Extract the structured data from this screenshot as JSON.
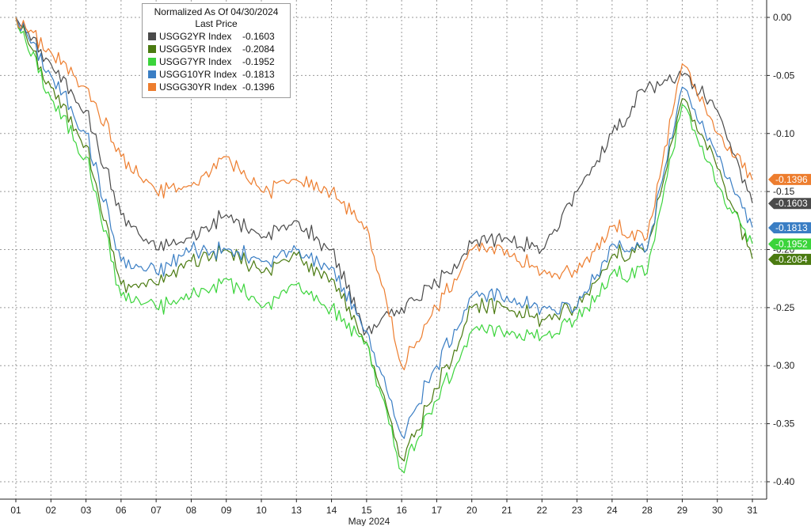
{
  "chart_data": {
    "type": "line",
    "title": "Normalized As Of 04/30/2024",
    "subtitle": "Last Price",
    "xlabel": "May 2024",
    "ylabel": "",
    "x_ticks": [
      "01",
      "02",
      "03",
      "06",
      "07",
      "08",
      "09",
      "10",
      "13",
      "14",
      "15",
      "16",
      "17",
      "20",
      "21",
      "22",
      "23",
      "24",
      "28",
      "29",
      "30",
      "31"
    ],
    "y_ticks": [
      "0.00",
      "-0.05",
      "-0.10",
      "-0.15",
      "-0.20",
      "-0.25",
      "-0.30",
      "-0.35",
      "-0.40"
    ],
    "ylim": [
      -0.415,
      0.015
    ],
    "series": [
      {
        "name": "USGG2YR Index",
        "last": "-0.1603",
        "color": "#4a4a4a",
        "values": [
          0.0,
          -0.04,
          -0.08,
          -0.17,
          -0.2,
          -0.19,
          -0.17,
          -0.19,
          -0.175,
          -0.2,
          -0.27,
          -0.25,
          -0.23,
          -0.195,
          -0.19,
          -0.2,
          -0.15,
          -0.1,
          -0.06,
          -0.05,
          -0.08,
          -0.16
        ]
      },
      {
        "name": "USGG5YR Index",
        "last": "-0.2084",
        "color": "#4a7a10",
        "values": [
          0.0,
          -0.06,
          -0.11,
          -0.23,
          -0.23,
          -0.21,
          -0.2,
          -0.22,
          -0.205,
          -0.225,
          -0.28,
          -0.38,
          -0.32,
          -0.25,
          -0.25,
          -0.26,
          -0.25,
          -0.205,
          -0.2,
          -0.07,
          -0.13,
          -0.208
        ]
      },
      {
        "name": "USGG7YR Index",
        "last": "-0.1952",
        "color": "#3bd43b",
        "values": [
          0.0,
          -0.07,
          -0.12,
          -0.24,
          -0.25,
          -0.24,
          -0.225,
          -0.25,
          -0.23,
          -0.25,
          -0.28,
          -0.39,
          -0.33,
          -0.27,
          -0.27,
          -0.275,
          -0.26,
          -0.22,
          -0.22,
          -0.075,
          -0.145,
          -0.195
        ]
      },
      {
        "name": "USGG10YR Index",
        "last": "-0.1813",
        "color": "#3a7ec4",
        "values": [
          0.0,
          -0.05,
          -0.1,
          -0.21,
          -0.22,
          -0.2,
          -0.2,
          -0.21,
          -0.2,
          -0.215,
          -0.27,
          -0.36,
          -0.3,
          -0.24,
          -0.24,
          -0.25,
          -0.25,
          -0.195,
          -0.2,
          -0.06,
          -0.12,
          -0.181
        ]
      },
      {
        "name": "USGG30YR Index",
        "last": "-0.1396",
        "color": "#ed7d2e",
        "values": [
          0.0,
          -0.03,
          -0.06,
          -0.12,
          -0.15,
          -0.145,
          -0.12,
          -0.15,
          -0.14,
          -0.15,
          -0.18,
          -0.3,
          -0.25,
          -0.2,
          -0.2,
          -0.22,
          -0.22,
          -0.18,
          -0.19,
          -0.04,
          -0.1,
          -0.14
        ]
      }
    ],
    "grid": true,
    "legend_position": "top-left"
  }
}
